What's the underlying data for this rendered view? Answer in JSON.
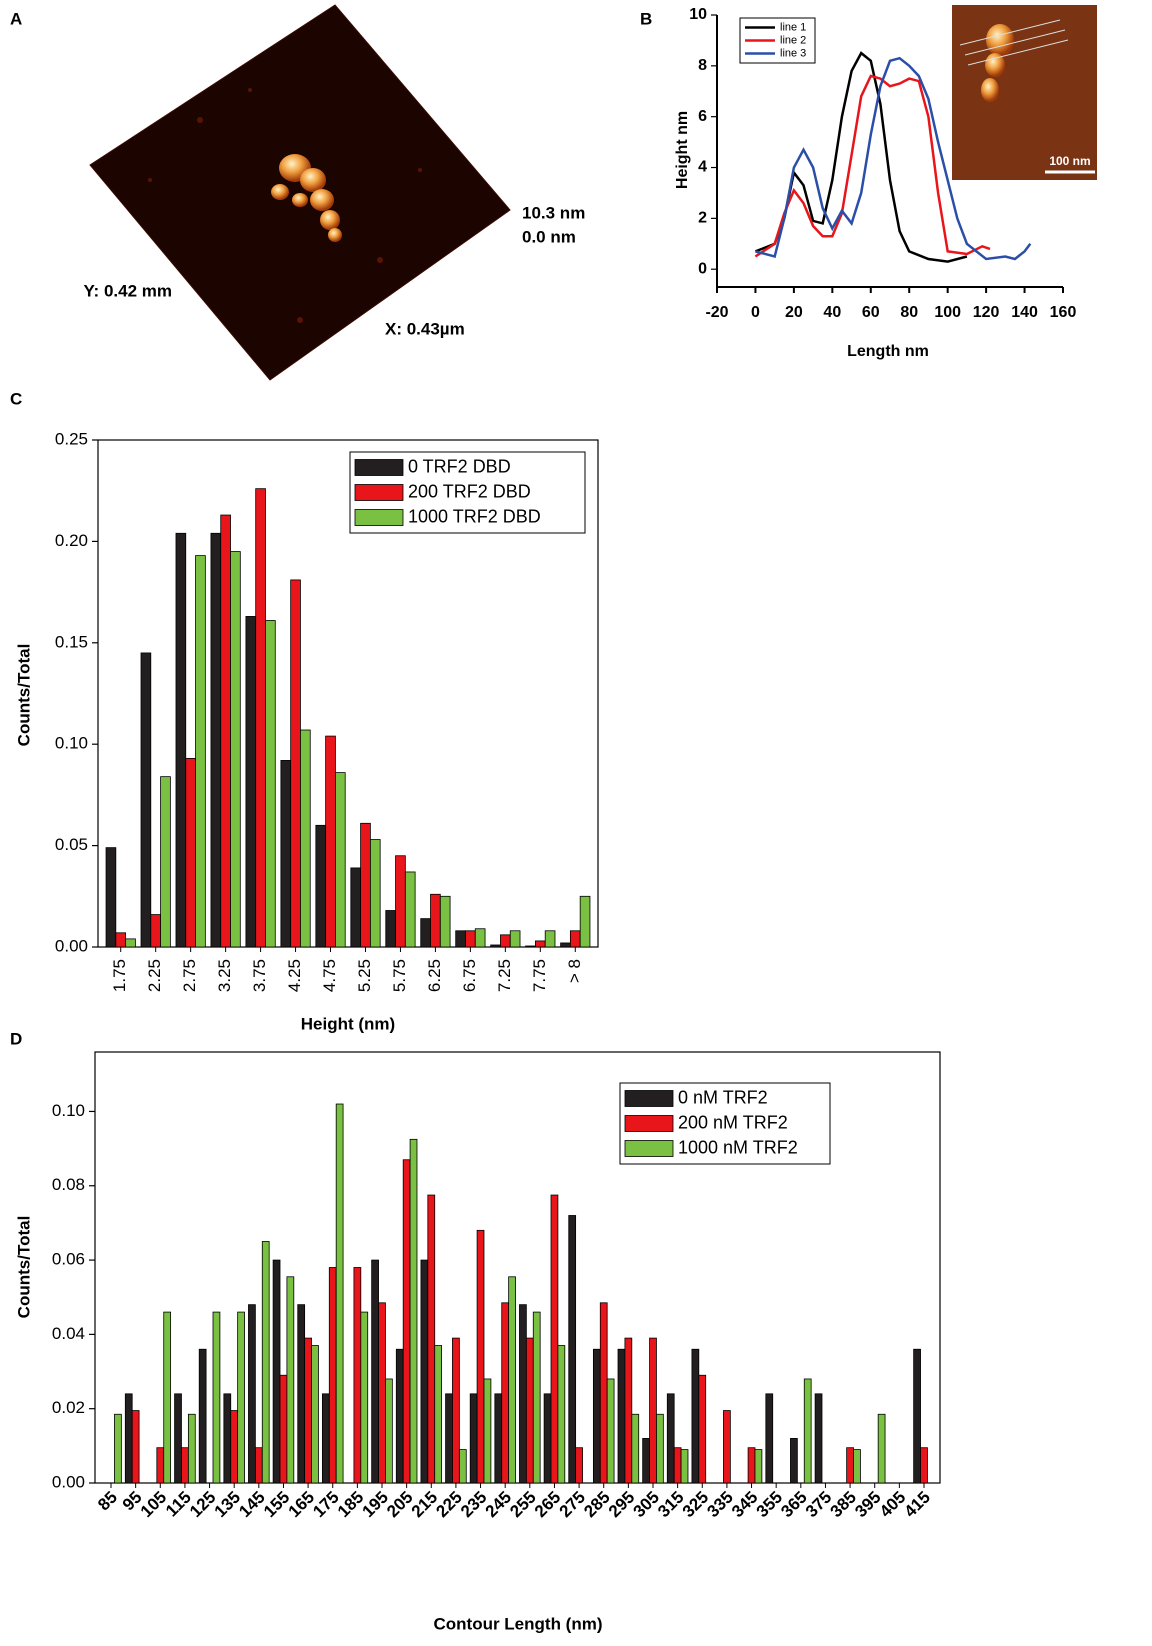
{
  "panel_labels": [
    "A",
    "B",
    "C",
    "D"
  ],
  "afm_image": {
    "z_max": "10.3 nm",
    "z_min": "0.0 nm",
    "y_size": "Y: 0.42 mm",
    "x_size": "X: 0.43µm"
  },
  "inset_scale": "100 nm",
  "chart_data": [
    {
      "type": "line",
      "x_label": "Length nm",
      "y_label": "Height nm",
      "xlim": [
        -20,
        160
      ],
      "ylim": [
        -0.7,
        10
      ],
      "xticks": [
        -20,
        0,
        20,
        40,
        60,
        80,
        100,
        120,
        140,
        160
      ],
      "yticks": [
        0,
        2,
        4,
        6,
        8,
        10
      ],
      "series": [
        {
          "name": "line 1",
          "color": "#000000",
          "x": [
            0,
            10,
            15,
            20,
            25,
            30,
            35,
            40,
            45,
            50,
            55,
            60,
            65,
            70,
            75,
            80,
            90,
            100,
            110
          ],
          "values": [
            0.7,
            1,
            2,
            3.8,
            3.3,
            1.9,
            1.8,
            3.5,
            6,
            7.8,
            8.5,
            8.2,
            6.5,
            3.5,
            1.5,
            0.7,
            0.4,
            0.3,
            0.5
          ]
        },
        {
          "name": "line 2",
          "color": "#e8151b",
          "x": [
            0,
            10,
            15,
            20,
            25,
            30,
            35,
            40,
            45,
            50,
            55,
            60,
            65,
            70,
            75,
            80,
            85,
            90,
            95,
            100,
            110,
            118,
            122
          ],
          "values": [
            0.5,
            1,
            2.2,
            3.1,
            2.6,
            1.7,
            1.3,
            1.3,
            2.2,
            4.5,
            6.8,
            7.6,
            7.5,
            7.2,
            7.3,
            7.5,
            7.4,
            6,
            3,
            0.7,
            0.6,
            0.9,
            0.8
          ]
        },
        {
          "name": "line 3",
          "color": "#2b4fa8",
          "x": [
            0,
            10,
            15,
            20,
            25,
            30,
            35,
            40,
            45,
            50,
            55,
            60,
            65,
            70,
            75,
            80,
            85,
            90,
            95,
            100,
            105,
            110,
            120,
            130,
            135,
            140,
            143
          ],
          "values": [
            0.7,
            0.5,
            2,
            4,
            4.7,
            4,
            2.4,
            1.6,
            2.3,
            1.8,
            3,
            5.3,
            7.2,
            8.2,
            8.3,
            8,
            7.6,
            6.7,
            5,
            3.5,
            2,
            1,
            0.4,
            0.5,
            0.4,
            0.7,
            1
          ]
        }
      ]
    },
    {
      "type": "bar",
      "x_label": "Height (nm)",
      "y_label": "Counts/Total",
      "categories": [
        "1.75",
        "2.25",
        "2.75",
        "3.25",
        "3.75",
        "4.25",
        "4.75",
        "5.25",
        "5.75",
        "6.25",
        "6.75",
        "7.25",
        "7.75",
        "> 8"
      ],
      "ylim": [
        0,
        0.25
      ],
      "yticks": [
        {
          "value": 0,
          "label": "0.00"
        },
        {
          "value": 0.05,
          "label": "0.05"
        },
        {
          "value": 0.1,
          "label": "0.10"
        },
        {
          "value": 0.15,
          "label": "0.15"
        },
        {
          "value": 0.2,
          "label": "0.20"
        },
        {
          "value": 0.25,
          "label": "0.25"
        }
      ],
      "series": [
        {
          "name": "0 TRF2 DBD",
          "color": "#231f20",
          "values": [
            0.049,
            0.145,
            0.204,
            0.204,
            0.163,
            0.092,
            0.06,
            0.039,
            0.018,
            0.014,
            0.008,
            0.001,
            0.0005,
            0.002
          ]
        },
        {
          "name": "200 TRF2 DBD",
          "color": "#e8151b",
          "values": [
            0.007,
            0.016,
            0.093,
            0.213,
            0.226,
            0.181,
            0.104,
            0.061,
            0.045,
            0.026,
            0.008,
            0.006,
            0.003,
            0.008
          ]
        },
        {
          "name": "1000 TRF2 DBD",
          "color": "#7ac143",
          "values": [
            0.004,
            0.084,
            0.193,
            0.195,
            0.161,
            0.107,
            0.086,
            0.053,
            0.037,
            0.025,
            0.009,
            0.008,
            0.008,
            0.025
          ]
        }
      ]
    },
    {
      "type": "bar",
      "x_label": "Contour Length (nm)",
      "y_label": "Counts/Total",
      "categories": [
        "85",
        "95",
        "105",
        "115",
        "125",
        "135",
        "145",
        "155",
        "165",
        "175",
        "185",
        "195",
        "205",
        "215",
        "225",
        "235",
        "245",
        "255",
        "265",
        "275",
        "285",
        "295",
        "305",
        "315",
        "325",
        "335",
        "345",
        "355",
        "365",
        "375",
        "385",
        "395",
        "405",
        "415"
      ],
      "ylim": [
        0,
        0.116
      ],
      "yticks": [
        {
          "value": 0,
          "label": "0.00"
        },
        {
          "value": 0.02,
          "label": "0.02"
        },
        {
          "value": 0.04,
          "label": "0.04"
        },
        {
          "value": 0.06,
          "label": "0.06"
        },
        {
          "value": 0.08,
          "label": "0.08"
        },
        {
          "value": 0.1,
          "label": "0.10"
        }
      ],
      "series": [
        {
          "name": "0 nM TRF2",
          "color": "#231f20",
          "values": [
            0,
            0.024,
            0,
            0.024,
            0.036,
            0.024,
            0.048,
            0.06,
            0.048,
            0.024,
            0,
            0.06,
            0.036,
            0.06,
            0.024,
            0.024,
            0.024,
            0.048,
            0.024,
            0.072,
            0.036,
            0.036,
            0.012,
            0.024,
            0.036,
            0,
            0,
            0.024,
            0.012,
            0.024,
            0,
            0,
            0,
            0.036
          ]
        },
        {
          "name": "200 nM TRF2",
          "color": "#e8151b",
          "values": [
            0,
            0.0195,
            0.0095,
            0.0095,
            0,
            0.0195,
            0.0095,
            0.029,
            0.039,
            0.058,
            0.058,
            0.0485,
            0.087,
            0.0775,
            0.039,
            0.068,
            0.0485,
            0.039,
            0.0775,
            0.0095,
            0.0485,
            0.039,
            0.039,
            0.0095,
            0.029,
            0.0195,
            0.0095,
            0,
            0,
            0,
            0.0095,
            0,
            0,
            0.0095
          ]
        },
        {
          "name": "1000 nM TRF2",
          "color": "#7ac143",
          "values": [
            0.0185,
            0,
            0.046,
            0.0185,
            0.046,
            0.046,
            0.065,
            0.0555,
            0.037,
            0.102,
            0.046,
            0.028,
            0.0925,
            0.037,
            0.009,
            0.028,
            0.0555,
            0.046,
            0.037,
            0,
            0.028,
            0.0185,
            0.0185,
            0.009,
            0,
            0,
            0.009,
            0,
            0.028,
            0,
            0.009,
            0.0185,
            0,
            0
          ]
        }
      ]
    }
  ]
}
